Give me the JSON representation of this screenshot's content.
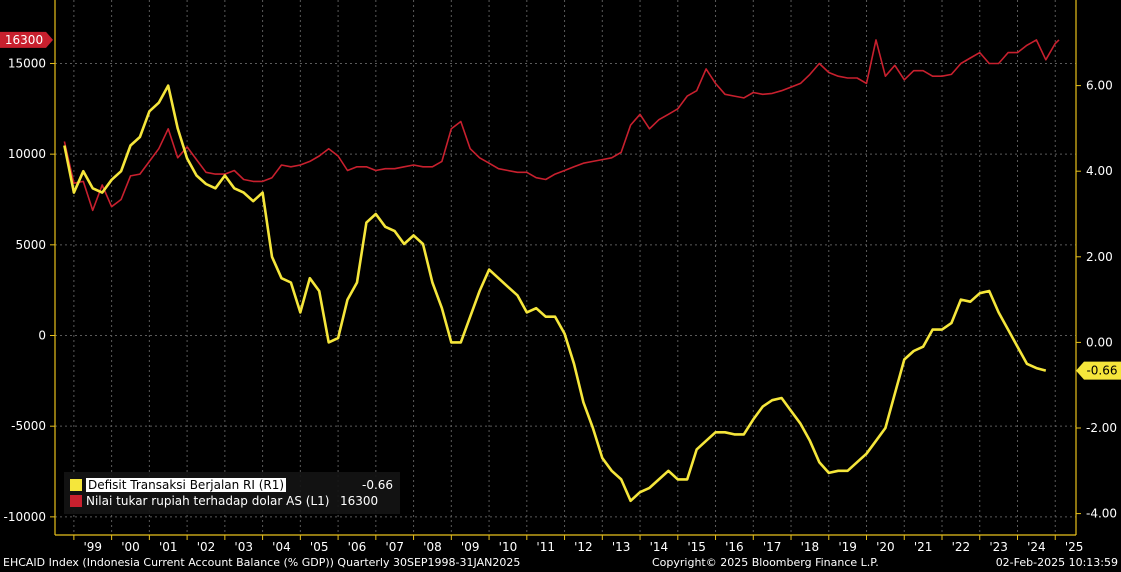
{
  "chart_data": {
    "type": "line",
    "x_labels": [
      "'99",
      "'00",
      "'01",
      "'02",
      "'03",
      "'04",
      "'05",
      "'06",
      "'07",
      "'08",
      "'09",
      "'10",
      "'11",
      "'12",
      "'13",
      "'14",
      "'15",
      "'16",
      "'17",
      "'18",
      "'19",
      "'20",
      "'21",
      "'22",
      "'23",
      "'24",
      "'25"
    ],
    "ylim_left": [
      -11000,
      18500
    ],
    "ylim_right": [
      -4.5,
      8.0
    ],
    "left_ticks": [
      15000,
      10000,
      5000,
      0,
      -5000,
      -10000
    ],
    "right_ticks": [
      "6.00",
      "4.00",
      "2.00",
      "0.00",
      "-2.00",
      "-4.00"
    ],
    "grid": true,
    "legend_position": "bottom-left",
    "series": [
      {
        "name": "Defisit Transaksi Berjalan RI (R1)",
        "axis": "right",
        "color": "#f5e63b",
        "last_value": "-0.66",
        "points": [
          [
            1998.75,
            4.6
          ],
          [
            1999.0,
            3.5
          ],
          [
            1999.25,
            4.0
          ],
          [
            1999.5,
            3.6
          ],
          [
            1999.75,
            3.5
          ],
          [
            2000.0,
            3.8
          ],
          [
            2000.25,
            4.0
          ],
          [
            2000.5,
            4.6
          ],
          [
            2000.75,
            4.8
          ],
          [
            2001.0,
            5.4
          ],
          [
            2001.25,
            5.6
          ],
          [
            2001.5,
            6.0
          ],
          [
            2001.75,
            5.0
          ],
          [
            2002.0,
            4.3
          ],
          [
            2002.25,
            3.9
          ],
          [
            2002.5,
            3.7
          ],
          [
            2002.75,
            3.6
          ],
          [
            2003.0,
            3.9
          ],
          [
            2003.25,
            3.6
          ],
          [
            2003.5,
            3.5
          ],
          [
            2003.75,
            3.3
          ],
          [
            2004.0,
            3.5
          ],
          [
            2004.25,
            2.0
          ],
          [
            2004.5,
            1.5
          ],
          [
            2004.75,
            1.4
          ],
          [
            2005.0,
            0.7
          ],
          [
            2005.25,
            1.5
          ],
          [
            2005.5,
            1.2
          ],
          [
            2005.75,
            0.0
          ],
          [
            2006.0,
            0.1
          ],
          [
            2006.25,
            1.0
          ],
          [
            2006.5,
            1.4
          ],
          [
            2006.75,
            2.8
          ],
          [
            2007.0,
            3.0
          ],
          [
            2007.25,
            2.7
          ],
          [
            2007.5,
            2.6
          ],
          [
            2007.75,
            2.3
          ],
          [
            2008.0,
            2.5
          ],
          [
            2008.25,
            2.3
          ],
          [
            2008.5,
            1.4
          ],
          [
            2008.75,
            0.8
          ],
          [
            2009.0,
            0.0
          ],
          [
            2009.25,
            0.0
          ],
          [
            2009.5,
            0.6
          ],
          [
            2009.75,
            1.2
          ],
          [
            2010.0,
            1.7
          ],
          [
            2010.25,
            1.5
          ],
          [
            2010.5,
            1.3
          ],
          [
            2010.75,
            1.1
          ],
          [
            2011.0,
            0.7
          ],
          [
            2011.25,
            0.8
          ],
          [
            2011.5,
            0.6
          ],
          [
            2011.75,
            0.6
          ],
          [
            2012.0,
            0.2
          ],
          [
            2012.25,
            -0.5
          ],
          [
            2012.5,
            -1.4
          ],
          [
            2012.75,
            -2.0
          ],
          [
            2013.0,
            -2.7
          ],
          [
            2013.25,
            -3.0
          ],
          [
            2013.5,
            -3.2
          ],
          [
            2013.75,
            -3.7
          ],
          [
            2014.0,
            -3.5
          ],
          [
            2014.25,
            -3.4
          ],
          [
            2014.5,
            -3.2
          ],
          [
            2014.75,
            -3.0
          ],
          [
            2015.0,
            -3.2
          ],
          [
            2015.25,
            -3.2
          ],
          [
            2015.5,
            -2.5
          ],
          [
            2015.75,
            -2.3
          ],
          [
            2016.0,
            -2.1
          ],
          [
            2016.25,
            -2.1
          ],
          [
            2016.5,
            -2.15
          ],
          [
            2016.75,
            -2.15
          ],
          [
            2017.0,
            -1.8
          ],
          [
            2017.25,
            -1.5
          ],
          [
            2017.5,
            -1.35
          ],
          [
            2017.75,
            -1.3
          ],
          [
            2018.0,
            -1.6
          ],
          [
            2018.25,
            -1.9
          ],
          [
            2018.5,
            -2.3
          ],
          [
            2018.75,
            -2.8
          ],
          [
            2019.0,
            -3.05
          ],
          [
            2019.25,
            -3.0
          ],
          [
            2019.5,
            -3.0
          ],
          [
            2019.75,
            -2.8
          ],
          [
            2020.0,
            -2.6
          ],
          [
            2020.25,
            -2.3
          ],
          [
            2020.5,
            -2.0
          ],
          [
            2020.75,
            -1.2
          ],
          [
            2021.0,
            -0.4
          ],
          [
            2021.25,
            -0.2
          ],
          [
            2021.5,
            -0.1
          ],
          [
            2021.75,
            0.3
          ],
          [
            2022.0,
            0.3
          ],
          [
            2022.25,
            0.45
          ],
          [
            2022.5,
            1.0
          ],
          [
            2022.75,
            0.95
          ],
          [
            2023.0,
            1.15
          ],
          [
            2023.25,
            1.2
          ],
          [
            2023.5,
            0.7
          ],
          [
            2023.75,
            0.3
          ],
          [
            2024.0,
            -0.1
          ],
          [
            2024.25,
            -0.5
          ],
          [
            2024.5,
            -0.6
          ],
          [
            2024.75,
            -0.66
          ]
        ]
      },
      {
        "name": "Nilai tukar rupiah terhadap dolar AS (L1)",
        "axis": "left",
        "color": "#c8202e",
        "last_value": "16300",
        "points": [
          [
            1998.75,
            10700
          ],
          [
            1999.0,
            8400
          ],
          [
            1999.25,
            8500
          ],
          [
            1999.5,
            6900
          ],
          [
            1999.75,
            8300
          ],
          [
            2000.0,
            7100
          ],
          [
            2000.25,
            7500
          ],
          [
            2000.5,
            8800
          ],
          [
            2000.75,
            8900
          ],
          [
            2001.0,
            9600
          ],
          [
            2001.25,
            10300
          ],
          [
            2001.5,
            11400
          ],
          [
            2001.75,
            9800
          ],
          [
            2002.0,
            10400
          ],
          [
            2002.25,
            9700
          ],
          [
            2002.5,
            9000
          ],
          [
            2002.75,
            8900
          ],
          [
            2003.0,
            8900
          ],
          [
            2003.25,
            9100
          ],
          [
            2003.5,
            8600
          ],
          [
            2003.75,
            8500
          ],
          [
            2004.0,
            8500
          ],
          [
            2004.25,
            8700
          ],
          [
            2004.5,
            9400
          ],
          [
            2004.75,
            9300
          ],
          [
            2005.0,
            9400
          ],
          [
            2005.25,
            9600
          ],
          [
            2005.5,
            9900
          ],
          [
            2005.75,
            10300
          ],
          [
            2006.0,
            9900
          ],
          [
            2006.25,
            9100
          ],
          [
            2006.5,
            9300
          ],
          [
            2006.75,
            9300
          ],
          [
            2007.0,
            9100
          ],
          [
            2007.25,
            9200
          ],
          [
            2007.5,
            9200
          ],
          [
            2007.75,
            9300
          ],
          [
            2008.0,
            9400
          ],
          [
            2008.25,
            9300
          ],
          [
            2008.5,
            9300
          ],
          [
            2008.75,
            9600
          ],
          [
            2009.0,
            11400
          ],
          [
            2009.25,
            11800
          ],
          [
            2009.5,
            10300
          ],
          [
            2009.75,
            9800
          ],
          [
            2010.0,
            9500
          ],
          [
            2010.25,
            9200
          ],
          [
            2010.5,
            9100
          ],
          [
            2010.75,
            9000
          ],
          [
            2011.0,
            9000
          ],
          [
            2011.25,
            8700
          ],
          [
            2011.5,
            8600
          ],
          [
            2011.75,
            8900
          ],
          [
            2012.0,
            9100
          ],
          [
            2012.25,
            9300
          ],
          [
            2012.5,
            9500
          ],
          [
            2012.75,
            9600
          ],
          [
            2013.0,
            9700
          ],
          [
            2013.25,
            9800
          ],
          [
            2013.5,
            10100
          ],
          [
            2013.75,
            11600
          ],
          [
            2014.0,
            12200
          ],
          [
            2014.25,
            11400
          ],
          [
            2014.5,
            11900
          ],
          [
            2014.75,
            12200
          ],
          [
            2015.0,
            12500
          ],
          [
            2015.25,
            13200
          ],
          [
            2015.5,
            13500
          ],
          [
            2015.75,
            14700
          ],
          [
            2016.0,
            13900
          ],
          [
            2016.25,
            13300
          ],
          [
            2016.5,
            13200
          ],
          [
            2016.75,
            13100
          ],
          [
            2017.0,
            13400
          ],
          [
            2017.25,
            13300
          ],
          [
            2017.5,
            13350
          ],
          [
            2017.75,
            13500
          ],
          [
            2018.0,
            13700
          ],
          [
            2018.25,
            13900
          ],
          [
            2018.5,
            14400
          ],
          [
            2018.75,
            15000
          ],
          [
            2019.0,
            14500
          ],
          [
            2019.25,
            14300
          ],
          [
            2019.5,
            14200
          ],
          [
            2019.75,
            14200
          ],
          [
            2020.0,
            13900
          ],
          [
            2020.25,
            16300
          ],
          [
            2020.5,
            14300
          ],
          [
            2020.75,
            14900
          ],
          [
            2021.0,
            14100
          ],
          [
            2021.25,
            14600
          ],
          [
            2021.5,
            14600
          ],
          [
            2021.75,
            14300
          ],
          [
            2022.0,
            14300
          ],
          [
            2022.25,
            14400
          ],
          [
            2022.5,
            15000
          ],
          [
            2022.75,
            15300
          ],
          [
            2023.0,
            15600
          ],
          [
            2023.25,
            15000
          ],
          [
            2023.5,
            15000
          ],
          [
            2023.75,
            15600
          ],
          [
            2024.0,
            15600
          ],
          [
            2024.25,
            16000
          ],
          [
            2024.5,
            16300
          ],
          [
            2024.75,
            15200
          ],
          [
            2025.0,
            16100
          ],
          [
            2025.1,
            16300
          ]
        ]
      }
    ]
  },
  "legend": {
    "items": [
      {
        "label": "Defisit Transaksi Berjalan RI (R1)",
        "value": "-0.66",
        "color": "#f5e63b"
      },
      {
        "label": "Nilai tukar rupiah terhadap dolar AS (L1)",
        "value": "16300",
        "color": "#c8202e"
      }
    ]
  },
  "markers": {
    "left_last": "16300",
    "right_last": "-0.66"
  },
  "footer": {
    "left": "EHCAID Index (Indonesia Current Account Balance (% GDP))  Quarterly 30SEP1998-31JAN2025",
    "copyright": "Copyright© 2025 Bloomberg Finance L.P.",
    "timestamp": "02-Feb-2025 10:13:59"
  },
  "colors": {
    "background": "#000000",
    "grid": "#5a5a5a",
    "axis": "#e8c11c",
    "cad": "#f5e63b",
    "fx": "#c8202e"
  }
}
